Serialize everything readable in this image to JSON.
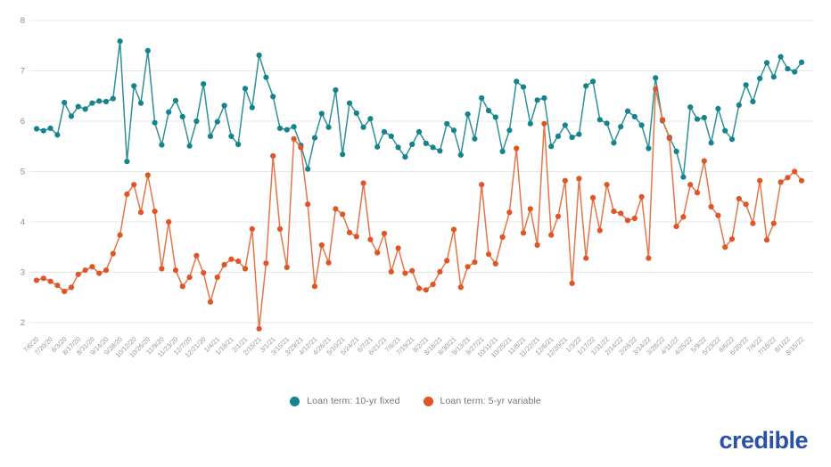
{
  "branding": {
    "logo_text": "credible",
    "logo_color": "#2b51a4"
  },
  "legend": {
    "items": [
      {
        "label": "Loan term: 10-yr fixed"
      },
      {
        "label": "Loan term: 5-yr variable"
      }
    ]
  },
  "chart_data": {
    "type": "line",
    "title": "",
    "xlabel": "",
    "ylabel": "",
    "ylim": [
      2,
      8
    ],
    "yticks": [
      2,
      3,
      4,
      5,
      6,
      7,
      8
    ],
    "grid": true,
    "legend_position": "bottom",
    "x_labels_every": 2,
    "x_labels": [
      "7/6/20",
      "7/20/20",
      "8/3/20",
      "8/17/20",
      "8/31/20",
      "9/14/20",
      "9/28/20",
      "10/12/20",
      "10/26/20",
      "11/9/20",
      "11/23/20",
      "12/7/20",
      "12/21/20",
      "1/4/21",
      "1/18/21",
      "2/1/21",
      "2/15/21",
      "3/1/21",
      "3/15/21",
      "3/29/21",
      "4/12/21",
      "4/26/21",
      "5/10/21",
      "5/24/21",
      "6/7/21",
      "6/21/21",
      "7/6/21",
      "7/19/21",
      "8/2/21",
      "8/16/21",
      "8/30/21",
      "9/13/21",
      "9/27/21",
      "10/11/21",
      "10/25/21",
      "11/8/21",
      "11/22/21",
      "12/6/21",
      "12/20/21",
      "1/3/22",
      "1/17/22",
      "1/31/22",
      "2/14/22",
      "2/28/22",
      "3/14/22",
      "3/28/22",
      "4/11/22",
      "4/25/22",
      "5/9/22",
      "5/23/22",
      "6/6/22",
      "6/20/22",
      "7/4/22",
      "7/18/22",
      "8/1/22",
      "8/15/22"
    ],
    "series": [
      {
        "name": "Loan term: 10-yr fixed",
        "color": "#15838b",
        "line_color": "#2f9198",
        "values": [
          5.85,
          5.81,
          5.86,
          5.73,
          6.37,
          6.1,
          6.29,
          6.24,
          6.36,
          6.4,
          6.39,
          6.45,
          7.59,
          5.2,
          6.7,
          6.36,
          7.4,
          5.97,
          5.53,
          6.18,
          6.41,
          6.09,
          5.51,
          6.0,
          6.74,
          5.7,
          5.99,
          6.31,
          5.7,
          5.54,
          6.65,
          6.27,
          7.31,
          6.87,
          6.49,
          5.86,
          5.83,
          5.89,
          5.52,
          5.05,
          5.67,
          6.15,
          5.88,
          6.62,
          5.34,
          6.36,
          6.16,
          5.88,
          6.05,
          5.49,
          5.79,
          5.7,
          5.48,
          5.29,
          5.54,
          5.79,
          5.56,
          5.48,
          5.41,
          5.95,
          5.82,
          5.33,
          6.14,
          5.65,
          6.46,
          6.21,
          6.08,
          5.4,
          5.82,
          6.79,
          6.68,
          5.95,
          6.42,
          6.46,
          5.5,
          5.7,
          5.92,
          5.68,
          5.74,
          6.7,
          6.79,
          6.03,
          5.96,
          5.57,
          5.89,
          6.2,
          6.09,
          5.92,
          5.46,
          6.86,
          6.01,
          5.68,
          5.4,
          4.89,
          6.28,
          6.04,
          6.07,
          5.57,
          6.25,
          5.81,
          5.64,
          6.32,
          6.72,
          6.39,
          6.85,
          7.16,
          6.88,
          7.28,
          7.04,
          6.98,
          7.17
        ]
      },
      {
        "name": "Loan term: 5-yr variable",
        "color": "#e05526",
        "line_color": "#e4764a",
        "values": [
          2.84,
          2.88,
          2.82,
          2.74,
          2.62,
          2.7,
          2.96,
          3.04,
          3.11,
          2.98,
          3.04,
          3.37,
          3.74,
          4.55,
          4.74,
          4.19,
          4.93,
          4.21,
          3.07,
          4.0,
          3.04,
          2.72,
          2.9,
          3.33,
          2.99,
          2.41,
          2.9,
          3.15,
          3.26,
          3.22,
          3.07,
          3.86,
          1.88,
          3.18,
          5.31,
          3.86,
          3.1,
          5.65,
          5.48,
          4.35,
          2.72,
          3.54,
          3.19,
          4.26,
          4.15,
          3.79,
          3.71,
          4.77,
          3.65,
          3.39,
          3.77,
          3.01,
          3.48,
          2.98,
          3.03,
          2.68,
          2.65,
          2.76,
          3.01,
          3.23,
          3.85,
          2.7,
          3.11,
          3.2,
          4.74,
          3.36,
          3.17,
          3.7,
          4.19,
          5.46,
          3.78,
          4.26,
          3.54,
          5.95,
          3.74,
          4.11,
          4.82,
          2.78,
          4.86,
          3.28,
          4.48,
          3.83,
          4.74,
          4.21,
          4.17,
          4.03,
          4.07,
          4.5,
          3.28,
          6.64,
          6.03,
          5.66,
          3.91,
          4.1,
          4.74,
          4.58,
          5.21,
          4.3,
          4.13,
          3.5,
          3.66,
          4.46,
          4.35,
          3.97,
          4.82,
          3.64,
          3.97,
          4.79,
          4.88,
          5.0,
          4.82
        ]
      }
    ],
    "style": {
      "gridline_color": "#e8e8e8",
      "ytick_color": "#8c8c8c",
      "xtick_color": "#9a9a9a"
    }
  }
}
